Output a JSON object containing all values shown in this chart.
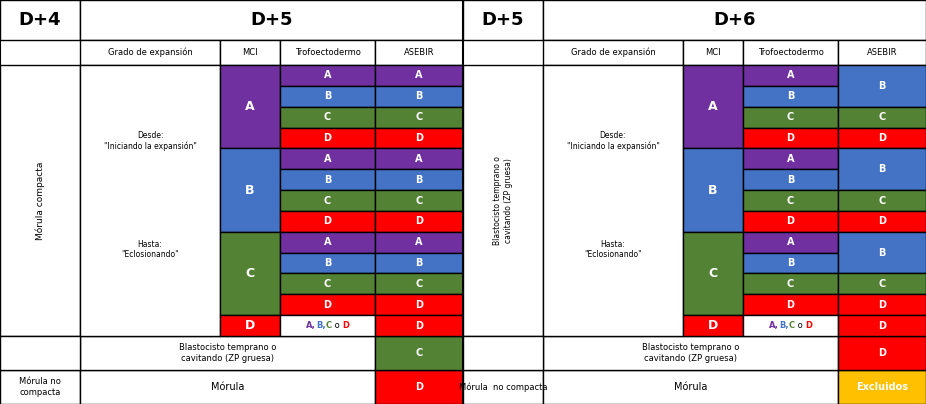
{
  "colors": {
    "purple": "#7030A0",
    "blue": "#4472C4",
    "green": "#548235",
    "red": "#FF0000",
    "white": "#FFFFFF",
    "black": "#000000",
    "yellow": "#FFC000"
  },
  "left_panel": {
    "day_label": "D+4",
    "sub_day_label": "D+5",
    "sub_headers": [
      "Grado de expansión",
      "MCI",
      "Trofoectodermo",
      "ASEBIR"
    ],
    "row1_label": "Mórula compacta",
    "text_desde": "Desde:\n\"Iniciando la expansión\"",
    "text_hasta": "Hasta:\n\"Eclosionando\"",
    "row2_label": "Blastocisto temprano o\ncavitando (ZP gruesa)",
    "row3_label": "Mórula no\ncompacta",
    "row3_sub": "Mórula",
    "mci_blocks": [
      {
        "label": "A",
        "color": "#7030A0",
        "rows": 4
      },
      {
        "label": "B",
        "color": "#4472C4",
        "rows": 4
      },
      {
        "label": "C",
        "color": "#548235",
        "rows": 4
      },
      {
        "label": "D",
        "color": "#FF0000",
        "rows": 1
      }
    ],
    "trofo_rows": [
      "A",
      "B",
      "C",
      "D",
      "A",
      "B",
      "C",
      "D",
      "A",
      "B",
      "C",
      "D",
      "A,B,C o D"
    ],
    "trofo_colors": [
      "#7030A0",
      "#4472C4",
      "#548235",
      "#FF0000",
      "#7030A0",
      "#4472C4",
      "#548235",
      "#FF0000",
      "#7030A0",
      "#4472C4",
      "#548235",
      "#FF0000",
      "#FFFFFF"
    ],
    "asebir_rows_main": [
      "A",
      "B",
      "C",
      "D",
      "A",
      "B",
      "C",
      "D",
      "A",
      "B",
      "C",
      "D",
      "D"
    ],
    "asebir_colors_main": [
      "#7030A0",
      "#4472C4",
      "#548235",
      "#FF0000",
      "#7030A0",
      "#4472C4",
      "#548235",
      "#FF0000",
      "#7030A0",
      "#4472C4",
      "#548235",
      "#FF0000",
      "#FF0000"
    ],
    "asebir_row2": "C",
    "asebir_row2_color": "#548235",
    "asebir_row3": "D",
    "asebir_row3_color": "#FF0000"
  },
  "right_panel": {
    "day_label": "D+5",
    "sub_day_label": "D+6",
    "sub_headers": [
      "Grado de expansión",
      "MCI",
      "Trofoectodermo",
      "ASEBIR"
    ],
    "row1_label": "Blastocisto temprano o\ncavitando (ZP gruesa)",
    "text_desde": "Desde:\n\"Iniciando la expansión\"",
    "text_hasta": "Hasta:\n\"Eclosionando\"",
    "row2_label": "Blastocisto temprano o\ncavitando (ZP gruesa)",
    "row3_label": "Mórula  no compacta",
    "row3_sub": "Mórula",
    "mci_blocks": [
      {
        "label": "A",
        "color": "#7030A0",
        "rows": 4
      },
      {
        "label": "B",
        "color": "#4472C4",
        "rows": 4
      },
      {
        "label": "C",
        "color": "#548235",
        "rows": 4
      },
      {
        "label": "D",
        "color": "#FF0000",
        "rows": 1
      }
    ],
    "trofo_rows": [
      "A",
      "B",
      "C",
      "D",
      "A",
      "B",
      "C",
      "D",
      "A",
      "B",
      "C",
      "D",
      "A,B,C o D"
    ],
    "trofo_colors": [
      "#7030A0",
      "#4472C4",
      "#548235",
      "#FF0000",
      "#7030A0",
      "#4472C4",
      "#548235",
      "#FF0000",
      "#7030A0",
      "#4472C4",
      "#548235",
      "#FF0000",
      "#FFFFFF"
    ],
    "asebir_row2": "D",
    "asebir_row2_color": "#FF0000",
    "asebir_row3": "Excluidos",
    "asebir_row3_color": "#FFC000"
  }
}
